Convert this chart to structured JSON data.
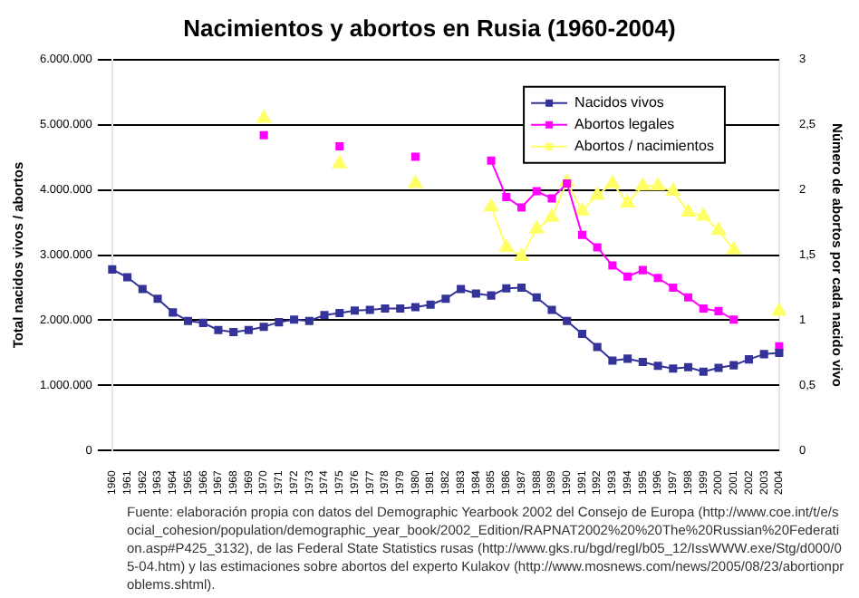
{
  "chart_data": {
    "type": "line",
    "title": "Nacimientos y abortos en Rusia (1960-2004)",
    "ylabel": "Total nacidos vivos / abortos",
    "y2label": "Número de abortos por cada nacido vivo",
    "categories": [
      "1960",
      "1961",
      "1962",
      "1963",
      "1964",
      "1965",
      "1966",
      "1967",
      "1968",
      "1969",
      "1970",
      "1971",
      "1972",
      "1973",
      "1974",
      "1975",
      "1976",
      "1977",
      "1978",
      "1979",
      "1980",
      "1981",
      "1982",
      "1983",
      "1984",
      "1985",
      "1986",
      "1987",
      "1988",
      "1989",
      "1990",
      "1991",
      "1992",
      "1993",
      "1994",
      "1995",
      "1996",
      "1997",
      "1998",
      "1999",
      "2000",
      "2001",
      "2002",
      "2003",
      "2004"
    ],
    "series": [
      {
        "name": "Nacidos vivos",
        "color": "#333399",
        "marker": "square",
        "values": [
          2780000,
          2660000,
          2480000,
          2330000,
          2120000,
          1990000,
          1960000,
          1850000,
          1820000,
          1850000,
          1900000,
          1970000,
          2010000,
          1990000,
          2080000,
          2110000,
          2150000,
          2160000,
          2180000,
          2180000,
          2200000,
          2240000,
          2330000,
          2480000,
          2410000,
          2380000,
          2490000,
          2500000,
          2350000,
          2160000,
          1990000,
          1790000,
          1590000,
          1380000,
          1410000,
          1360000,
          1300000,
          1260000,
          1280000,
          1210000,
          1270000,
          1310000,
          1400000,
          1480000,
          1500000
        ]
      },
      {
        "name": "Abortos legales",
        "color": "#ff00ff",
        "marker": "square",
        "values": [
          null,
          null,
          null,
          null,
          null,
          null,
          null,
          null,
          null,
          null,
          4840000,
          null,
          null,
          null,
          null,
          4670000,
          null,
          null,
          null,
          null,
          4510000,
          null,
          null,
          null,
          null,
          4450000,
          3890000,
          3730000,
          3980000,
          3870000,
          4100000,
          3310000,
          3120000,
          2840000,
          2670000,
          2770000,
          2650000,
          2500000,
          2350000,
          2180000,
          2140000,
          2010000,
          null,
          null,
          1600000
        ]
      },
      {
        "name": "Abortos / nacimientos",
        "color": "#ffff66",
        "marker": "triangle",
        "axis": "y2",
        "values": [
          null,
          null,
          null,
          null,
          null,
          null,
          null,
          null,
          null,
          null,
          2.55,
          null,
          null,
          null,
          null,
          2.2,
          null,
          null,
          null,
          null,
          2.05,
          null,
          null,
          null,
          null,
          1.87,
          1.56,
          1.49,
          1.7,
          1.79,
          2.06,
          1.84,
          1.96,
          2.05,
          1.9,
          2.03,
          2.03,
          1.99,
          1.83,
          1.8,
          1.69,
          1.54,
          null,
          null,
          1.07
        ]
      }
    ],
    "ylim": [
      0,
      6000000
    ],
    "yticks": [
      {
        "value": 0,
        "label": "0"
      },
      {
        "value": 1000000,
        "label": "1.000.000"
      },
      {
        "value": 2000000,
        "label": "2.000.000"
      },
      {
        "value": 3000000,
        "label": "3.000.000"
      },
      {
        "value": 4000000,
        "label": "4.000.000"
      },
      {
        "value": 5000000,
        "label": "5.000.000"
      },
      {
        "value": 6000000,
        "label": "6.000.000"
      }
    ],
    "y2lim": [
      0,
      3
    ],
    "y2ticks": [
      0,
      {
        "value": 0.5,
        "label": "0,5"
      },
      1,
      {
        "value": 1.5,
        "label": "1,5"
      },
      2,
      {
        "value": 2.5,
        "label": "2,5"
      },
      3
    ],
    "grid": "y",
    "legend": "top right",
    "annotations": [
      "Fuente: elaboración propia con datos del Demographic Yearbook 2002 del Consejo de Europa (http://www.coe.int/t/e/social_cohesion/population/demographic_year_book/2002_Edition/RAPNAT2002%20%20The%20Russian%20Federation.asp#P425_3132), de las Federal State Statistics rusas (http://www.gks.ru/bgd/regl/b05_12/IssWWW.exe/Stg/d000/05-04.htm) y las estimaciones sobre abortos del experto Kulakov (http://www.mosnews.com/news/2005/08/23/abortionproblems.shtml)."
    ]
  }
}
